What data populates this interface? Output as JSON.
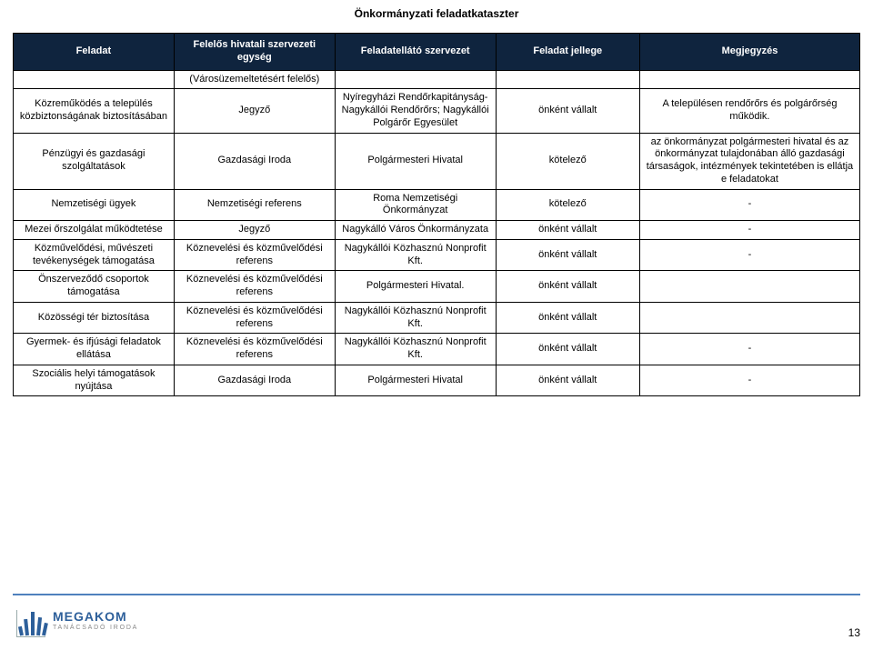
{
  "documentTitle": "Önkormányzati feladatkataszter",
  "table": {
    "columns": [
      {
        "label": "Feladat",
        "width": "19%"
      },
      {
        "label": "Felelős hivatali szervezeti egység",
        "width": "19%"
      },
      {
        "label": "Feladatellátó szervezet",
        "width": "19%"
      },
      {
        "label": "Feladat jellege",
        "width": "17%"
      },
      {
        "label": "Megjegyzés",
        "width": "26%"
      }
    ],
    "headerBg": "#0f243e",
    "headerColor": "#ffffff",
    "borderColor": "#000000",
    "rows": [
      {
        "cells": [
          "",
          "(Városüzemeltetésért felelős)",
          "",
          "",
          ""
        ]
      },
      {
        "cells": [
          "Közreműködés a település közbiztonságának biztosításában",
          "Jegyző",
          "Nyíregyházi Rendőrkapitányság- Nagykállói Rendőrőrs; Nagykállói Polgárőr Egyesület",
          "önként vállalt",
          "A településen rendőrőrs és polgárőrség működik."
        ]
      },
      {
        "cells": [
          "Pénzügyi és gazdasági szolgáltatások",
          "Gazdasági Iroda",
          "Polgármesteri Hivatal",
          "kötelező",
          "az önkormányzat polgármesteri hivatal és az önkormányzat tulajdonában álló gazdasági társaságok, intézmények tekintetében is ellátja e feladatokat"
        ]
      },
      {
        "cells": [
          "Nemzetiségi ügyek",
          "Nemzetiségi referens",
          "Roma Nemzetiségi Önkormányzat",
          "kötelező",
          "-"
        ]
      },
      {
        "cells": [
          "Mezei őrszolgálat működtetése",
          "Jegyző",
          "Nagykálló Város Önkormányzata",
          "önként vállalt",
          "-"
        ]
      },
      {
        "cells": [
          "Közművelődési, művészeti tevékenységek támogatása",
          "Köznevelési és közművelődési referens",
          "Nagykállói Közhasznú Nonprofit Kft.",
          "önként vállalt",
          "-"
        ]
      },
      {
        "cells": [
          "Önszerveződő csoportok támogatása",
          "Köznevelési és közművelődési referens",
          "Polgármesteri Hivatal.",
          "önként vállalt",
          ""
        ]
      },
      {
        "cells": [
          "Közösségi tér biztosítása",
          "Köznevelési és közművelődési referens",
          "Nagykállói Közhasznú Nonprofit Kft.",
          "önként vállalt",
          ""
        ]
      },
      {
        "cells": [
          "Gyermek- és ifjúsági feladatok ellátása",
          "Köznevelési és közművelődési referens",
          "Nagykállói Közhasznú Nonprofit Kft.",
          "önként vállalt",
          "-"
        ]
      },
      {
        "cells": [
          "Szociális helyi támogatások nyújtása",
          "Gazdasági Iroda",
          "Polgármesteri Hivatal",
          "önként vállalt",
          "-"
        ]
      }
    ]
  },
  "footer": {
    "lineColor": "#4f81bd",
    "logoMain": "MEGAKOM",
    "logoSub": "TANÁCSADÓ IRODA",
    "logoColor": "#2d5f9a",
    "pageNumber": "13"
  }
}
